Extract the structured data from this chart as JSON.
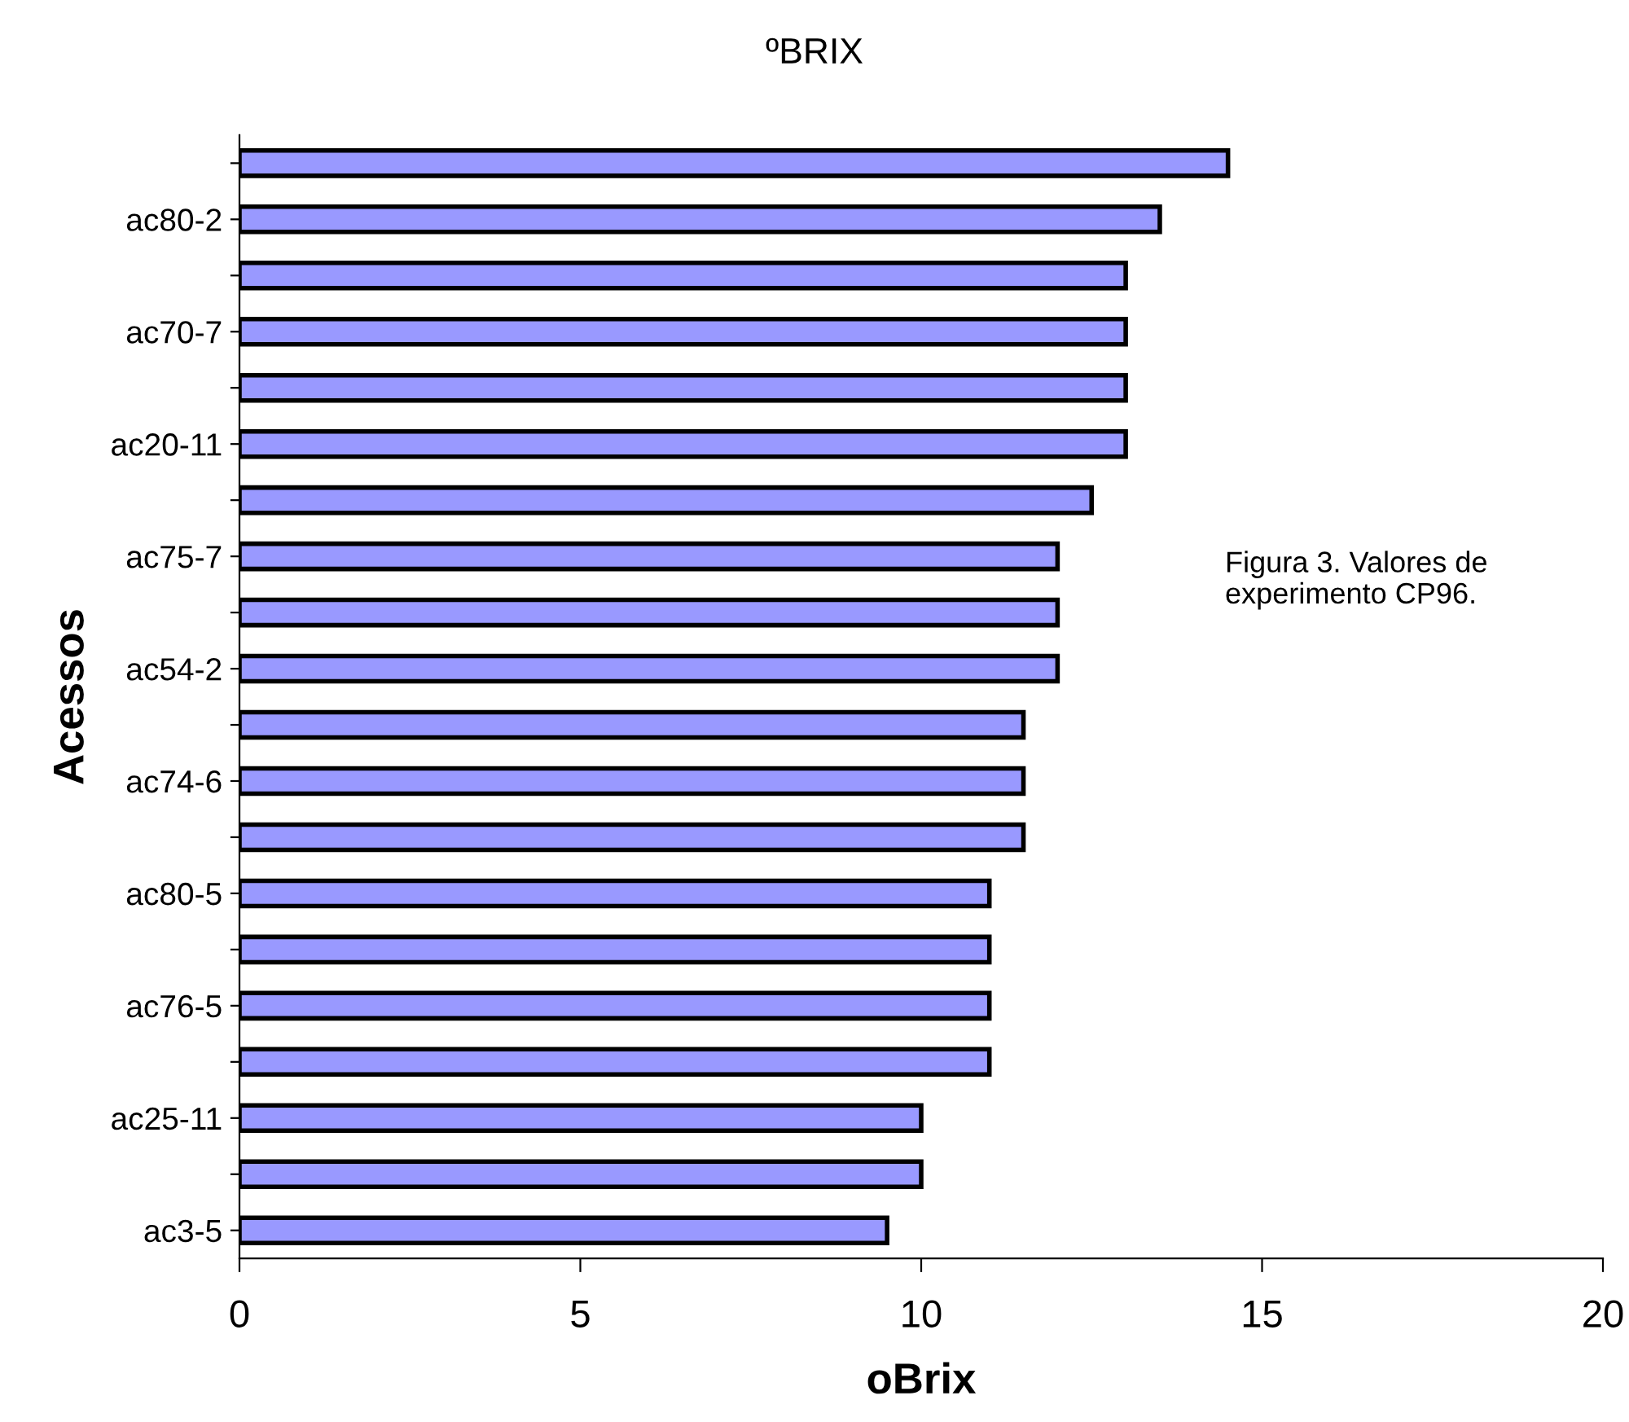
{
  "chart_data": {
    "type": "bar",
    "orientation": "horizontal",
    "title": "ºBRIX",
    "xlabel": "oBrix",
    "ylabel": "Acessos",
    "categories": [
      null,
      "ac80-2",
      null,
      "ac70-7",
      null,
      "ac20-11",
      null,
      "ac75-7",
      null,
      "ac54-2",
      null,
      "ac74-6",
      null,
      "ac80-5",
      null,
      "ac76-5",
      null,
      "ac25-11",
      null,
      "ac3-5"
    ],
    "values": [
      14.5,
      13.5,
      13,
      13,
      13,
      13,
      12.5,
      12,
      12,
      12,
      11.5,
      11.5,
      11.5,
      11,
      11,
      11,
      11,
      10,
      10,
      9.5
    ],
    "color": "#9999ff",
    "xlim": [
      0,
      20
    ],
    "xticks": [
      0,
      5,
      10,
      15,
      20
    ],
    "grid": false,
    "legend": false,
    "annotations": [
      "Figura 3. Valores de",
      "experimento CP96."
    ]
  }
}
